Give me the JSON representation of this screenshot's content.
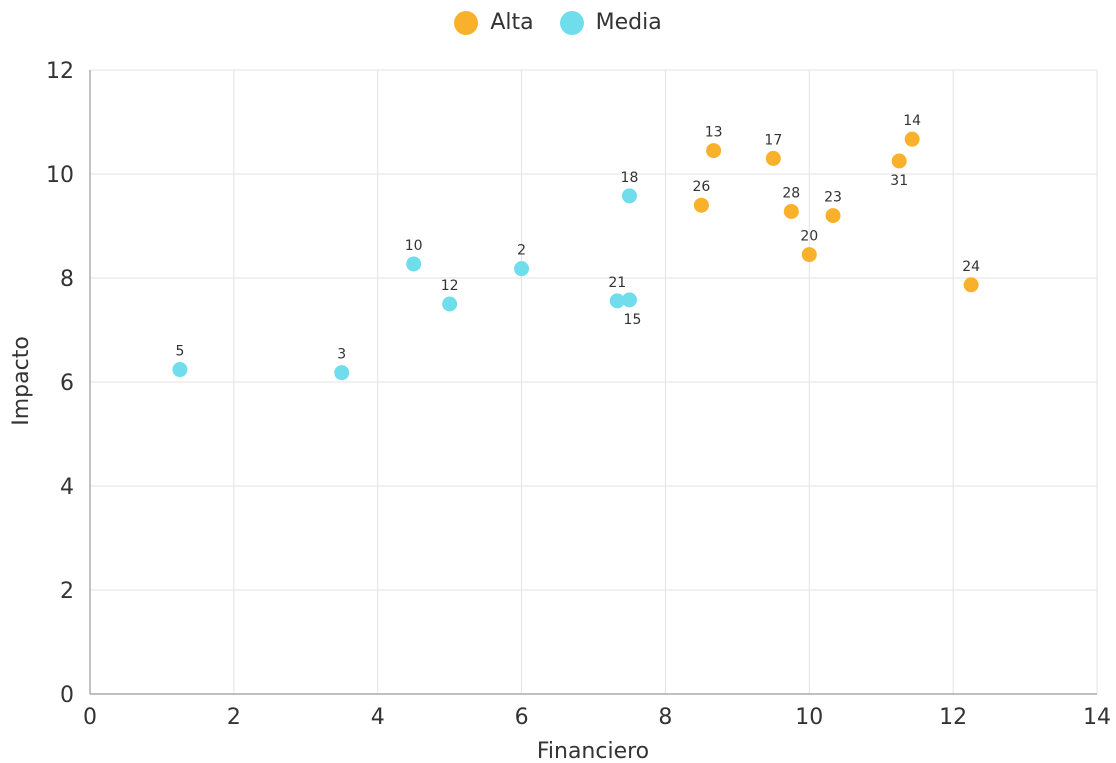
{
  "chart_data": {
    "type": "scatter",
    "title": "",
    "xlabel": "Financiero",
    "ylabel": "Impacto",
    "xlim": [
      0,
      14
    ],
    "ylim": [
      0,
      12
    ],
    "x_ticks": [
      "0",
      "2",
      "4",
      "6",
      "8",
      "10",
      "12",
      "14"
    ],
    "y_ticks": [
      "0",
      "2",
      "4",
      "6",
      "8",
      "10",
      "12"
    ],
    "grid": true,
    "legend_position": "top-center",
    "series": [
      {
        "name": "Alta",
        "color": "#F9B12B",
        "points": [
          {
            "label": "13",
            "x": 8.67,
            "y": 10.45
          },
          {
            "label": "17",
            "x": 9.5,
            "y": 10.3
          },
          {
            "label": "14",
            "x": 11.43,
            "y": 10.67
          },
          {
            "label": "31",
            "x": 11.25,
            "y": 10.25
          },
          {
            "label": "26",
            "x": 8.5,
            "y": 9.4
          },
          {
            "label": "28",
            "x": 9.75,
            "y": 9.28
          },
          {
            "label": "23",
            "x": 10.33,
            "y": 9.2
          },
          {
            "label": "20",
            "x": 10.0,
            "y": 8.45
          },
          {
            "label": "24",
            "x": 12.25,
            "y": 7.87
          }
        ]
      },
      {
        "name": "Media",
        "color": "#6FDDEB",
        "points": [
          {
            "label": "5",
            "x": 1.25,
            "y": 6.24
          },
          {
            "label": "3",
            "x": 3.5,
            "y": 6.18
          },
          {
            "label": "10",
            "x": 4.5,
            "y": 8.27
          },
          {
            "label": "12",
            "x": 5.0,
            "y": 7.5
          },
          {
            "label": "2",
            "x": 6.0,
            "y": 8.18
          },
          {
            "label": "18",
            "x": 7.5,
            "y": 9.58
          },
          {
            "label": "21",
            "x": 7.33,
            "y": 7.56
          },
          {
            "label": "15",
            "x": 7.5,
            "y": 7.58
          }
        ]
      }
    ]
  }
}
